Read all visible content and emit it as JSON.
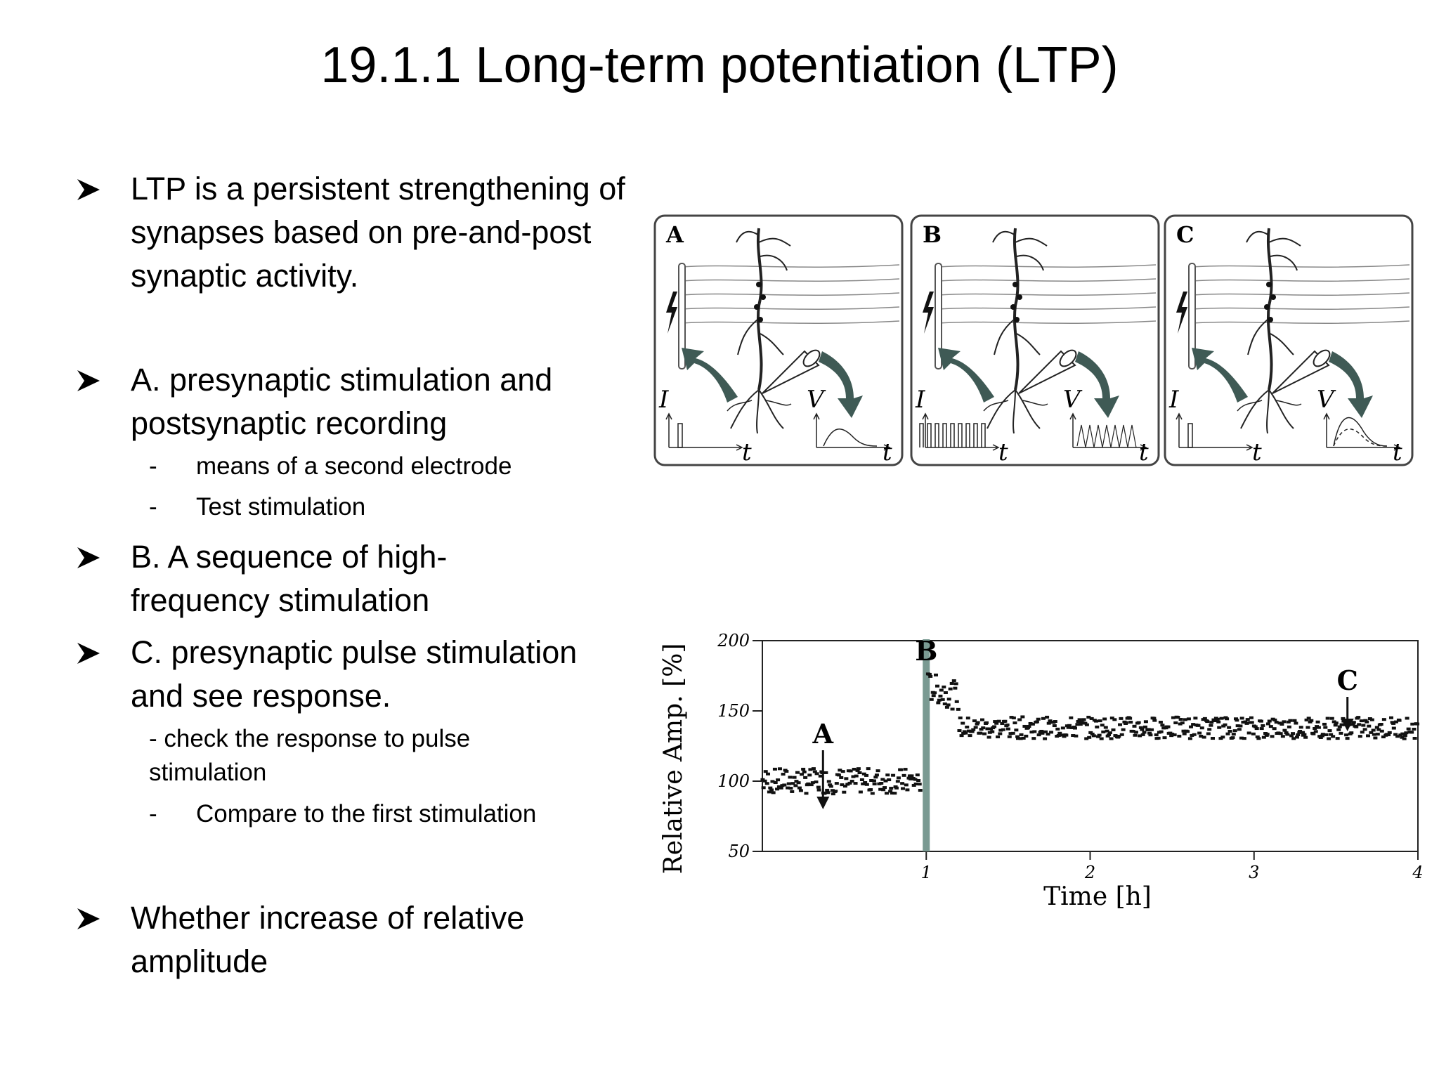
{
  "title": "19.1.1 Long-term potentiation (LTP)",
  "bullets": [
    {
      "text": "LTP is a persistent strengthening of synapses based on pre-and-post synaptic activity."
    },
    {
      "text": "A. presynaptic stimulation and postsynaptic recording"
    },
    {
      "text": "B. A sequence of high-frequency stimulation"
    },
    {
      "text": "C. presynaptic pulse stimulation and see response."
    },
    {
      "text": "Whether increase of relative amplitude"
    }
  ],
  "subbullets": {
    "a1": {
      "dash": "-",
      "text": "means of a second electrode"
    },
    "a2": {
      "dash": "-",
      "text": "Test stimulation"
    },
    "c1": {
      "text": "- check the response to pulse stimulation"
    },
    "c2": {
      "dash": "-",
      "text": "Compare to the first stimulation"
    }
  },
  "figure_panels": {
    "panels": [
      {
        "letter": "A",
        "i_label": "I",
        "v_label": "V",
        "t_label": "t"
      },
      {
        "letter": "B",
        "i_label": "I",
        "v_label": "V",
        "t_label": "t"
      },
      {
        "letter": "C",
        "i_label": "I",
        "v_label": "V",
        "t_label": "t"
      }
    ],
    "colors": {
      "arrow": "#3f5a55",
      "frame": "#444444"
    }
  },
  "chart_data": {
    "type": "scatter",
    "xlabel": "Time [h]",
    "ylabel": "Relative Amp. [%]",
    "xlim": [
      0,
      4
    ],
    "ylim": [
      50,
      200
    ],
    "xticks": [
      "1",
      "2",
      "3",
      "4"
    ],
    "yticks": [
      "200",
      "150",
      "100",
      "50"
    ],
    "stimulation_time": 1.0,
    "markers": [
      {
        "label": "A",
        "x": 0.37,
        "y": 112
      },
      {
        "label": "B",
        "x": 1.0,
        "y": 175
      },
      {
        "label": "C",
        "x": 3.57,
        "y": 150
      }
    ],
    "series": [
      {
        "x_start": 0.0,
        "x_end": 0.97,
        "mean": 100,
        "spread": 7
      },
      {
        "x_start": 1.01,
        "x_end": 1.2,
        "mean": 160,
        "spread": 8
      },
      {
        "x_start": 1.2,
        "x_end": 4.0,
        "mean": 138,
        "spread": 6
      }
    ],
    "colors": {
      "points": "#111111",
      "stim_bar": "#7a9a92",
      "axis": "#222222"
    }
  }
}
